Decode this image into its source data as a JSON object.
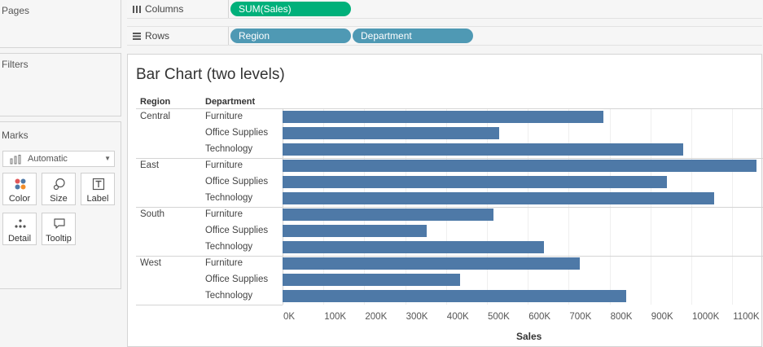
{
  "sidebar": {
    "pages_title": "Pages",
    "filters_title": "Filters",
    "marks_title": "Marks",
    "mark_type": "Automatic",
    "mark_buttons": [
      {
        "label": "Color",
        "icon": "color-icon"
      },
      {
        "label": "Size",
        "icon": "size-icon"
      },
      {
        "label": "Label",
        "icon": "label-icon"
      },
      {
        "label": "Detail",
        "icon": "detail-icon"
      },
      {
        "label": "Tooltip",
        "icon": "tooltip-icon"
      }
    ]
  },
  "shelves": {
    "columns_label": "Columns",
    "rows_label": "Rows",
    "column_pills": [
      "SUM(Sales)"
    ],
    "row_pills": [
      "Region",
      "Department"
    ]
  },
  "colors": {
    "bar": "#4e79a7",
    "measure_pill": "#00b07a",
    "dimension_pill": "#4f99b4"
  },
  "chart_data": {
    "type": "bar",
    "title": "Bar Chart (two levels)",
    "row_headers": [
      "Region",
      "Department"
    ],
    "xlabel": "Sales",
    "xlim": [
      0,
      1150000
    ],
    "x_ticks": [
      0,
      100000,
      200000,
      300000,
      400000,
      500000,
      600000,
      700000,
      800000,
      900000,
      1000000,
      1100000
    ],
    "x_tick_labels": [
      "0K",
      "100K",
      "200K",
      "300K",
      "400K",
      "500K",
      "600K",
      "700K",
      "800K",
      "900K",
      "1000K",
      "1100K"
    ],
    "groups": [
      {
        "region": "Central",
        "rows": [
          {
            "department": "Furniture",
            "value": 785000
          },
          {
            "department": "Office Supplies",
            "value": 530000
          },
          {
            "department": "Technology",
            "value": 980000
          }
        ]
      },
      {
        "region": "East",
        "rows": [
          {
            "department": "Furniture",
            "value": 1160000
          },
          {
            "department": "Office Supplies",
            "value": 940000
          },
          {
            "department": "Technology",
            "value": 1055000
          }
        ]
      },
      {
        "region": "South",
        "rows": [
          {
            "department": "Furniture",
            "value": 515000
          },
          {
            "department": "Office Supplies",
            "value": 352000
          },
          {
            "department": "Technology",
            "value": 640000
          }
        ]
      },
      {
        "region": "West",
        "rows": [
          {
            "department": "Furniture",
            "value": 727000
          },
          {
            "department": "Office Supplies",
            "value": 435000
          },
          {
            "department": "Technology",
            "value": 840000
          }
        ]
      }
    ]
  }
}
